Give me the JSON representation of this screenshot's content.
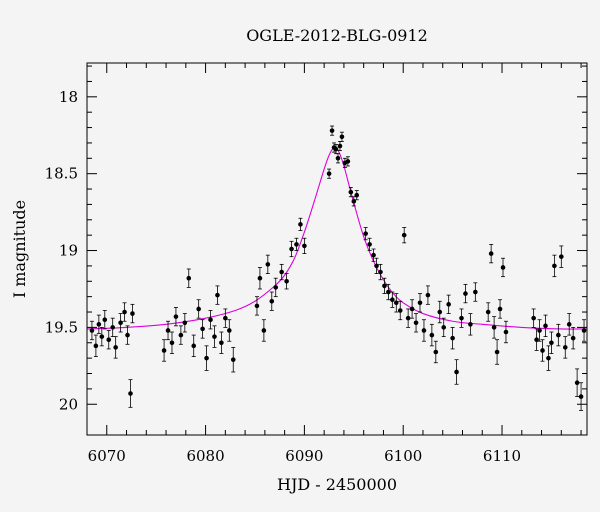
{
  "chart_data": {
    "type": "scatter",
    "title": "OGLE-2012-BLG-0912",
    "xlabel": "HJD - 2450000",
    "ylabel": "I magnitude",
    "xlim": [
      6068,
      6118.6
    ],
    "ylim": [
      20.2,
      17.78
    ],
    "y_inverted": true,
    "x_ticks": [
      6070,
      6080,
      6090,
      6100,
      6110
    ],
    "y_ticks": [
      18,
      18.5,
      19,
      19.5,
      20
    ],
    "x_tick_labels": [
      "6070",
      "6080",
      "6090",
      "6100",
      "6110"
    ],
    "y_tick_labels": [
      "18",
      "18.5",
      "19",
      "19.5",
      "20"
    ],
    "grid": false,
    "colors": {
      "points": "#000000",
      "model": "#dd00dd",
      "background": "#f4f4f4"
    },
    "model_curve": {
      "name": "model",
      "x": [
        6068,
        6072,
        6076,
        6080,
        6083,
        6085,
        6087,
        6088,
        6089,
        6090,
        6091,
        6092,
        6092.5,
        6093,
        6093.5,
        6094,
        6094.5,
        6095,
        6096,
        6097,
        6098,
        6099,
        6100,
        6102,
        6105,
        6108,
        6112,
        6116,
        6118.6
      ],
      "y": [
        19.51,
        19.5,
        19.48,
        19.44,
        19.39,
        19.33,
        19.23,
        19.16,
        19.05,
        18.88,
        18.68,
        18.47,
        18.38,
        18.33,
        18.36,
        18.45,
        18.57,
        18.69,
        18.91,
        19.07,
        19.19,
        19.28,
        19.34,
        19.41,
        19.46,
        19.48,
        19.5,
        19.51,
        19.51
      ]
    },
    "series": [
      {
        "x": [
          6068.5,
          6068.9,
          6069.2,
          6069.5,
          6069.8,
          6070.2,
          6070.6,
          6070.9,
          6071.4,
          6071.8,
          6072.1,
          6072.4,
          6072.6,
          6075.8,
          6076.2,
          6076.6,
          6077.0,
          6077.5,
          6077.9,
          6078.3,
          6078.8,
          6079.3,
          6079.7,
          6080.1,
          6080.5,
          6080.9,
          6081.2,
          6081.6,
          6082.0,
          6082.4,
          6082.8,
          6085.2,
          6085.5,
          6085.9,
          6086.3,
          6086.7,
          6087.1,
          6087.7,
          6088.2,
          6088.7,
          6089.2,
          6089.6,
          6090.0,
          6092.5,
          6092.8,
          6093.0,
          6093.2,
          6093.4,
          6093.6,
          6093.8,
          6094.1,
          6094.4,
          6094.7,
          6095.0,
          6095.3,
          6096.2,
          6096.6,
          6097.0,
          6097.3,
          6097.7,
          6098.1,
          6098.5,
          6098.9,
          6099.3,
          6099.7,
          6100.1,
          6100.5,
          6100.9,
          6101.3,
          6101.7,
          6102.1,
          6102.5,
          6102.9,
          6103.3,
          6103.7,
          6104.1,
          6104.6,
          6105.0,
          6105.4,
          6105.9,
          6106.3,
          6106.8,
          6107.3,
          6108.6,
          6108.9,
          6109.2,
          6109.5,
          6109.8,
          6110.1,
          6110.4,
          6113.2,
          6113.5,
          6113.8,
          6114.1,
          6114.4,
          6114.7,
          6115.0,
          6115.3,
          6115.7,
          6116.0,
          6116.4,
          6116.8,
          6117.2,
          6117.6,
          6118.0,
          6118.3
        ],
        "y": [
          19.52,
          19.62,
          19.48,
          19.56,
          19.45,
          19.58,
          19.5,
          19.63,
          19.47,
          19.4,
          19.55,
          19.93,
          19.41,
          19.65,
          19.52,
          19.6,
          19.43,
          19.55,
          19.47,
          19.18,
          19.62,
          19.38,
          19.51,
          19.7,
          19.45,
          19.56,
          19.29,
          19.6,
          19.44,
          19.52,
          19.71,
          19.36,
          19.18,
          19.52,
          19.09,
          19.33,
          19.24,
          19.14,
          19.2,
          18.99,
          18.96,
          18.83,
          18.97,
          18.5,
          18.22,
          18.33,
          18.34,
          18.4,
          18.32,
          18.26,
          18.43,
          18.42,
          18.62,
          18.68,
          18.64,
          18.89,
          18.96,
          19.03,
          19.1,
          19.14,
          19.23,
          19.27,
          19.32,
          19.34,
          19.39,
          18.9,
          19.44,
          19.38,
          19.47,
          19.34,
          19.52,
          19.29,
          19.55,
          19.66,
          19.4,
          19.5,
          19.35,
          19.57,
          19.79,
          19.44,
          19.28,
          19.48,
          19.27,
          19.4,
          19.02,
          19.5,
          19.66,
          19.38,
          19.11,
          19.53,
          19.44,
          19.58,
          19.52,
          19.65,
          19.49,
          19.7,
          19.6,
          19.1,
          19.55,
          19.04,
          19.63,
          19.48,
          19.57,
          19.86,
          19.95,
          19.52
        ],
        "yerr": [
          0.06,
          0.07,
          0.06,
          0.06,
          0.06,
          0.06,
          0.06,
          0.07,
          0.06,
          0.06,
          0.06,
          0.09,
          0.06,
          0.07,
          0.06,
          0.07,
          0.06,
          0.06,
          0.06,
          0.06,
          0.07,
          0.06,
          0.06,
          0.08,
          0.06,
          0.07,
          0.06,
          0.07,
          0.06,
          0.07,
          0.08,
          0.06,
          0.07,
          0.07,
          0.06,
          0.06,
          0.06,
          0.05,
          0.05,
          0.05,
          0.04,
          0.04,
          0.05,
          0.03,
          0.03,
          0.03,
          0.03,
          0.03,
          0.03,
          0.03,
          0.03,
          0.03,
          0.03,
          0.03,
          0.03,
          0.04,
          0.04,
          0.04,
          0.05,
          0.05,
          0.05,
          0.05,
          0.05,
          0.06,
          0.06,
          0.05,
          0.06,
          0.06,
          0.06,
          0.06,
          0.07,
          0.06,
          0.07,
          0.07,
          0.07,
          0.06,
          0.06,
          0.07,
          0.08,
          0.06,
          0.06,
          0.07,
          0.06,
          0.06,
          0.06,
          0.07,
          0.08,
          0.06,
          0.06,
          0.07,
          0.06,
          0.07,
          0.07,
          0.07,
          0.07,
          0.08,
          0.07,
          0.07,
          0.07,
          0.07,
          0.07,
          0.07,
          0.07,
          0.09,
          0.09,
          0.07
        ]
      }
    ]
  }
}
